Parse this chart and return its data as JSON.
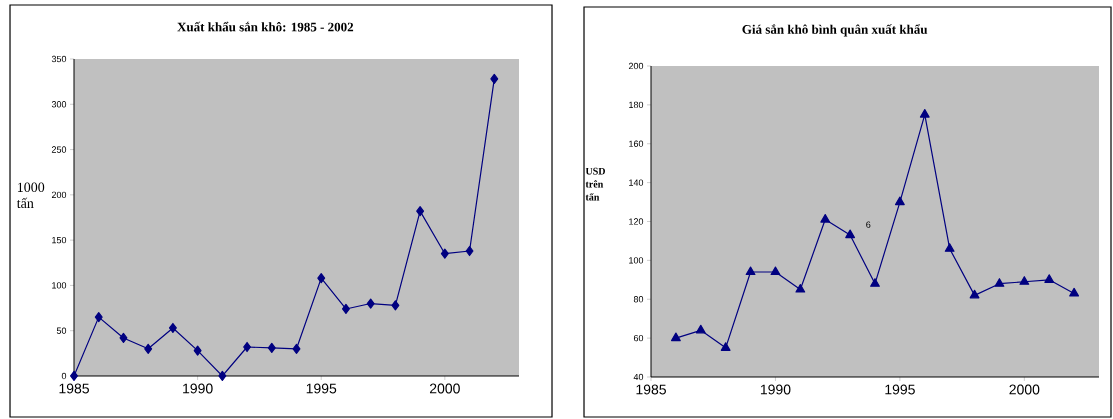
{
  "chart_data": [
    {
      "type": "line",
      "title": "Xuất khẩu sắn khô: 1985 - 2002",
      "ylabel": "1000 tấn",
      "x": [
        1985,
        1986,
        1987,
        1988,
        1989,
        1990,
        1991,
        1992,
        1993,
        1994,
        1995,
        1996,
        1997,
        1998,
        1999,
        2000,
        2001,
        2002
      ],
      "series": [
        {
          "color": "#000080",
          "values": [
            0,
            65,
            42,
            30,
            53,
            28,
            0,
            32,
            31,
            30,
            108,
            74,
            80,
            78,
            182,
            135,
            138,
            328
          ]
        }
      ],
      "xlim": [
        1985,
        2003
      ],
      "xticks": [
        1985,
        1990,
        1995,
        2000
      ],
      "ylim": [
        0,
        350
      ],
      "yticks": [
        0,
        50,
        100,
        150,
        200,
        250,
        300,
        350
      ],
      "marker": "diamond",
      "grid": false
    },
    {
      "type": "line",
      "title": "Giá sắn khô bình quân xuất khẩu",
      "ylabel": "USD trên tấn",
      "x": [
        1986,
        1987,
        1988,
        1989,
        1990,
        1991,
        1992,
        1993,
        1994,
        1995,
        1996,
        1997,
        1998,
        1999,
        2000,
        2001,
        2002
      ],
      "series": [
        {
          "color": "#000080",
          "values": [
            60,
            64,
            55,
            94,
            94,
            85,
            121,
            113,
            88,
            130,
            175,
            106,
            82,
            88,
            89,
            90,
            83
          ]
        }
      ],
      "xlim": [
        1985,
        2003
      ],
      "xticks": [
        1985,
        1990,
        1995,
        2000
      ],
      "ylim": [
        40,
        200
      ],
      "yticks": [
        40,
        60,
        80,
        100,
        120,
        140,
        160,
        180,
        200
      ],
      "marker": "triangle",
      "grid": false,
      "annotations": [
        "6"
      ]
    }
  ]
}
